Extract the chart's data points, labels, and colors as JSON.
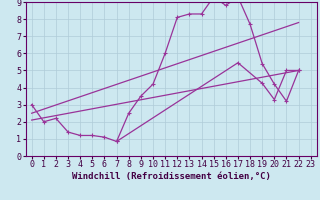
{
  "background_color": "#cde8f0",
  "grid_color": "#b0ccd8",
  "line_color": "#993399",
  "xlim": [
    -0.5,
    23.5
  ],
  "ylim": [
    0,
    9
  ],
  "xlabel": "Windchill (Refroidissement éolien,°C)",
  "xlabel_fontsize": 6.5,
  "tick_fontsize": 6.0,
  "line1_x": [
    0,
    1,
    2,
    3,
    4,
    5,
    6,
    7,
    8,
    9,
    10,
    11,
    12,
    13,
    14,
    15,
    16,
    17,
    18,
    19,
    20,
    21,
    22
  ],
  "line1_y": [
    3.0,
    2.0,
    2.2,
    1.4,
    1.2,
    1.2,
    1.1,
    0.85,
    2.5,
    3.5,
    4.2,
    6.0,
    8.1,
    8.3,
    8.3,
    9.3,
    8.8,
    9.3,
    7.7,
    5.4,
    4.2,
    3.2,
    5.0
  ],
  "line2_x": [
    0,
    22
  ],
  "line2_y": [
    2.5,
    7.8
  ],
  "line3_x": [
    0,
    22
  ],
  "line3_y": [
    2.1,
    5.0
  ],
  "line4_x": [
    7,
    17,
    19,
    20,
    21,
    22
  ],
  "line4_y": [
    0.85,
    5.45,
    4.25,
    3.3,
    5.0,
    5.0
  ]
}
